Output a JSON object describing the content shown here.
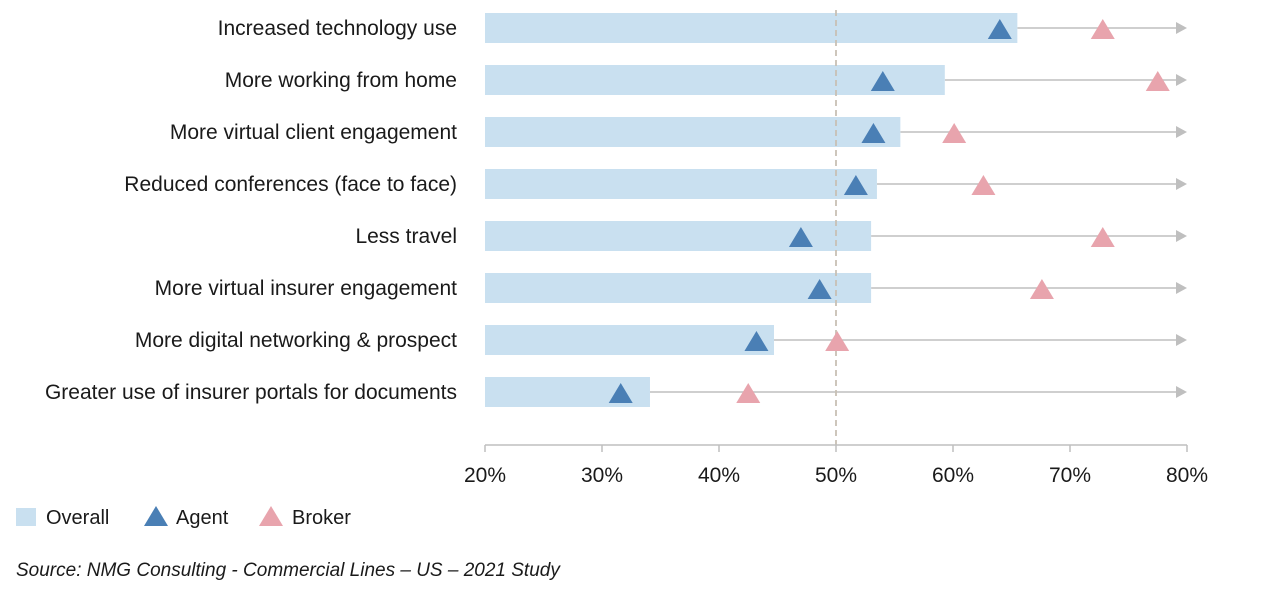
{
  "chart_data": {
    "type": "bar",
    "orientation": "horizontal",
    "categories": [
      "Increased technology use",
      "More working from home",
      "More virtual client engagement",
      "Reduced conferences (face to face)",
      "Less travel",
      "More virtual insurer engagement",
      "More digital networking & prospect",
      "Greater use of insurer portals for documents"
    ],
    "series": [
      {
        "name": "Overall",
        "mark": "bar",
        "color": "#c9e0f0",
        "values": [
          65.5,
          59.3,
          55.5,
          53.5,
          53.0,
          53.0,
          44.7,
          34.1
        ]
      },
      {
        "name": "Agent",
        "mark": "triangle",
        "color": "#4a7fb5",
        "values": [
          64.0,
          54.0,
          53.2,
          51.7,
          47.0,
          48.6,
          43.2,
          31.6
        ]
      },
      {
        "name": "Broker",
        "mark": "triangle",
        "color": "#e8a4ad",
        "values": [
          72.8,
          77.5,
          60.1,
          62.6,
          72.8,
          67.6,
          50.1,
          42.5
        ]
      }
    ],
    "xlim": [
      20,
      80
    ],
    "xticks": [
      "20%",
      "30%",
      "40%",
      "50%",
      "60%",
      "70%",
      "80%"
    ],
    "reference_line": 50,
    "legend_placement": "bottom-left",
    "grid": false
  },
  "source": "Source: NMG Consulting - Commercial Lines – US – 2021 Study"
}
